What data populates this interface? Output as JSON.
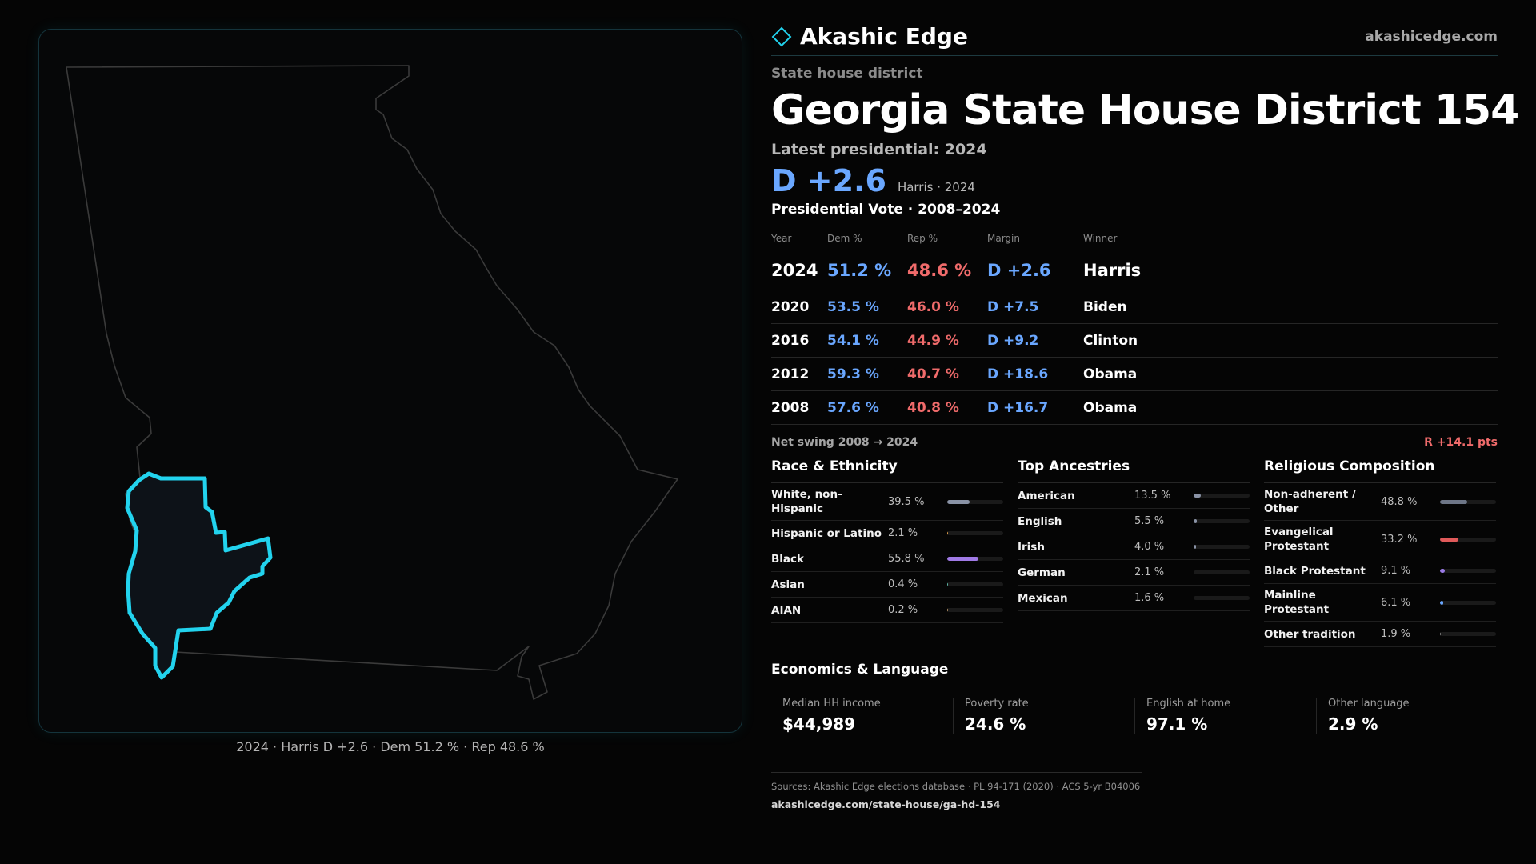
{
  "brand": {
    "name": "Akashic Edge",
    "url": "akashicedge.com",
    "logo_icon": "diamond-outline-icon",
    "accent_color": "#22d3ee"
  },
  "map": {
    "state_outline_color": "#3a3a3a",
    "district_outline_color": "#22d3ee",
    "caption": "2024 · Harris D +2.6 · Dem 51.2 % · Rep 48.6 %"
  },
  "header": {
    "kicker": "State house district",
    "title": "Georgia State House District 154",
    "latest_label": "Latest presidential: 2024",
    "headline_margin": "D +2.6",
    "headline_sub": "Harris · 2024"
  },
  "vote_table": {
    "title": "Presidential Vote · 2008–2024",
    "columns": [
      "Year",
      "Dem %",
      "Rep %",
      "Margin",
      "Winner"
    ],
    "rows": [
      {
        "year": "2024",
        "dem": "51.2 %",
        "rep": "48.6 %",
        "margin": "D +2.6",
        "winner": "Harris"
      },
      {
        "year": "2020",
        "dem": "53.5 %",
        "rep": "46.0 %",
        "margin": "D +7.5",
        "winner": "Biden"
      },
      {
        "year": "2016",
        "dem": "54.1 %",
        "rep": "44.9 %",
        "margin": "D +9.2",
        "winner": "Clinton"
      },
      {
        "year": "2012",
        "dem": "59.3 %",
        "rep": "40.7 %",
        "margin": "D +18.6",
        "winner": "Obama"
      },
      {
        "year": "2008",
        "dem": "57.6 %",
        "rep": "40.8 %",
        "margin": "D +16.7",
        "winner": "Obama"
      }
    ],
    "swing_label": "Net swing 2008 → 2024",
    "swing_value": "R +14.1 pts"
  },
  "race": {
    "title": "Race & Ethnicity",
    "items": [
      {
        "label": "White, non-Hispanic",
        "value": "39.5 %",
        "pct": 39.5,
        "color": "#8a93a6"
      },
      {
        "label": "Hispanic or Latino",
        "value": "2.1 %",
        "pct": 2.1,
        "color": "#d99a4a"
      },
      {
        "label": "Black",
        "value": "55.8 %",
        "pct": 55.8,
        "color": "#a07ae6"
      },
      {
        "label": "Asian",
        "value": "0.4 %",
        "pct": 0.4,
        "color": "#5fb8a8"
      },
      {
        "label": "AIAN",
        "value": "0.2 %",
        "pct": 0.2,
        "color": "#c7a070"
      }
    ]
  },
  "ancestry": {
    "title": "Top Ancestries",
    "items": [
      {
        "label": "American",
        "value": "13.5 %",
        "pct": 13.5,
        "color": "#8a93a6"
      },
      {
        "label": "English",
        "value": "5.5 %",
        "pct": 5.5,
        "color": "#8a93a6"
      },
      {
        "label": "Irish",
        "value": "4.0 %",
        "pct": 4.0,
        "color": "#8a93a6"
      },
      {
        "label": "German",
        "value": "2.1 %",
        "pct": 2.1,
        "color": "#8a93a6"
      },
      {
        "label": "Mexican",
        "value": "1.6 %",
        "pct": 1.6,
        "color": "#c79a5a"
      }
    ]
  },
  "religion": {
    "title": "Religious Composition",
    "items": [
      {
        "label": "Non-adherent / Other",
        "value": "48.8 %",
        "pct": 48.8,
        "color": "#6e7687"
      },
      {
        "label": "Evangelical Protestant",
        "value": "33.2 %",
        "pct": 33.2,
        "color": "#e05a5a"
      },
      {
        "label": "Black Protestant",
        "value": "9.1 %",
        "pct": 9.1,
        "color": "#9a7ae6"
      },
      {
        "label": "Mainline Protestant",
        "value": "6.1 %",
        "pct": 6.1,
        "color": "#6aa7ff"
      },
      {
        "label": "Other tradition",
        "value": "1.9 %",
        "pct": 1.9,
        "color": "#8a8a8a"
      }
    ]
  },
  "economics": {
    "title": "Economics & Language",
    "items": [
      {
        "label": "Median HH income",
        "value": "$44,989"
      },
      {
        "label": "Poverty rate",
        "value": "24.6 %"
      },
      {
        "label": "English at home",
        "value": "97.1 %"
      },
      {
        "label": "Other language",
        "value": "2.9 %"
      }
    ]
  },
  "sources": {
    "text": "Sources: Akashic Edge elections database · PL 94-171 (2020) · ACS 5-yr B04006",
    "url": "akashicedge.com/state-house/ga-hd-154"
  }
}
